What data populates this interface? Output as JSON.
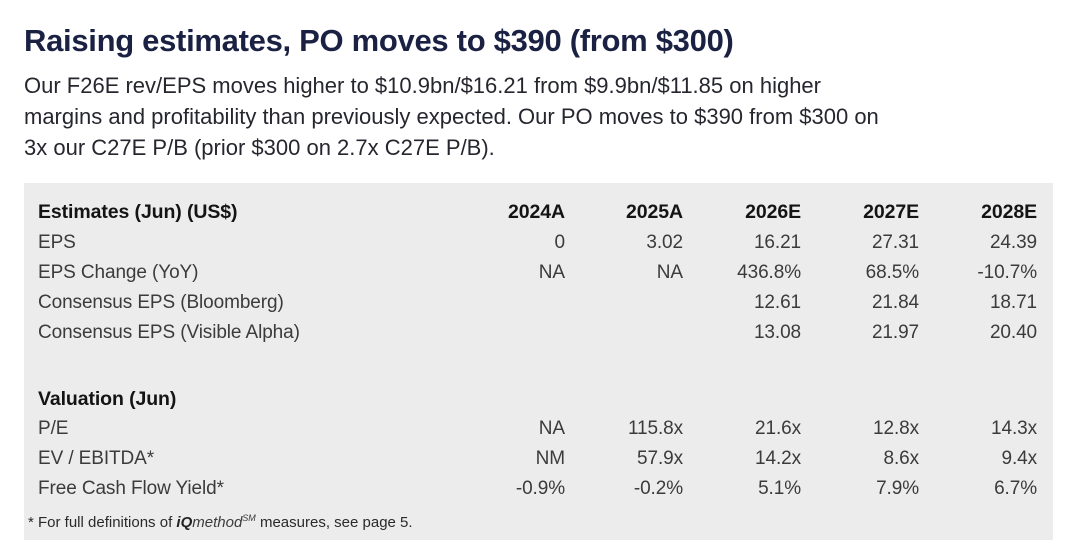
{
  "headline": "Raising estimates, PO moves to $390 (from $300)",
  "lede_lines": [
    "Our F26E rev/EPS moves higher to $10.9bn/$16.21 from $9.9bn/$11.85 on higher",
    "margins and profitability than previously expected. Our PO moves to $390 from $300 on",
    "3x our C27E P/B (prior $300 on 2.7x C27E P/B)."
  ],
  "colors": {
    "headline_navy": "#1b2143",
    "body_text": "#26272e",
    "panel_background": "#ececec",
    "table_bold_text": "#141414",
    "table_row_text": "#3b3b3b"
  },
  "table": {
    "header_label": "Estimates (Jun) (US$)",
    "year_columns": [
      "2024A",
      "2025A",
      "2026E",
      "2027E",
      "2028E"
    ],
    "sections": [
      {
        "header": null,
        "rows": [
          {
            "label": "EPS",
            "values": [
              "0",
              "3.02",
              "16.21",
              "27.31",
              "24.39"
            ]
          },
          {
            "label": "EPS Change (YoY)",
            "values": [
              "NA",
              "NA",
              "436.8%",
              "68.5%",
              "-10.7%"
            ]
          },
          {
            "label": "Consensus EPS (Bloomberg)",
            "values": [
              "",
              "",
              "12.61",
              "21.84",
              "18.71"
            ]
          },
          {
            "label": "Consensus EPS (Visible Alpha)",
            "values": [
              "",
              "",
              "13.08",
              "21.97",
              "20.40"
            ]
          }
        ]
      },
      {
        "header": "Valuation (Jun)",
        "rows": [
          {
            "label": "P/E",
            "values": [
              "NA",
              "115.8x",
              "21.6x",
              "12.8x",
              "14.3x"
            ]
          },
          {
            "label": "EV / EBITDA*",
            "values": [
              "NM",
              "57.9x",
              "14.2x",
              "8.6x",
              "9.4x"
            ]
          },
          {
            "label": "Free Cash Flow Yield*",
            "values": [
              "-0.9%",
              "-0.2%",
              "5.1%",
              "7.9%",
              "6.7%"
            ]
          }
        ]
      }
    ],
    "footnote": {
      "prefix": "* For full definitions of ",
      "brand_bold": "iQ",
      "brand_rest": "method",
      "superscript": "SM",
      "suffix": " measures, see page 5."
    }
  }
}
